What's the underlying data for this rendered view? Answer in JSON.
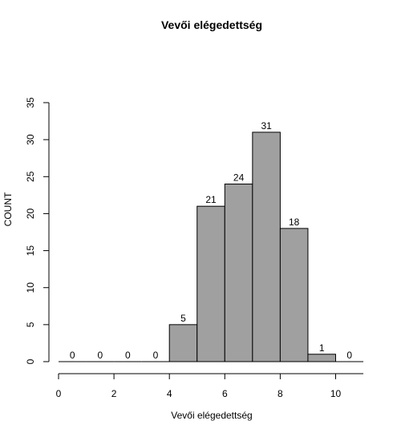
{
  "chart_data": {
    "type": "bar",
    "title": "Vevői elégedettség",
    "xlabel": "Vevői elégedettség",
    "ylabel": "COUNT",
    "bin_edges": [
      0,
      1,
      2,
      3,
      4,
      5,
      6,
      7,
      8,
      9,
      10,
      11
    ],
    "values": [
      0,
      0,
      0,
      0,
      5,
      21,
      24,
      31,
      18,
      1,
      0
    ],
    "xlim": [
      0,
      11
    ],
    "ylim": [
      0,
      35
    ],
    "xticks": [
      0,
      2,
      4,
      6,
      8,
      10
    ],
    "yticks": [
      0,
      5,
      10,
      15,
      20,
      25,
      30,
      35
    ],
    "bar_color": "#a0a0a0",
    "bar_edge_color": "#000000",
    "grid": false,
    "legend": "none"
  }
}
